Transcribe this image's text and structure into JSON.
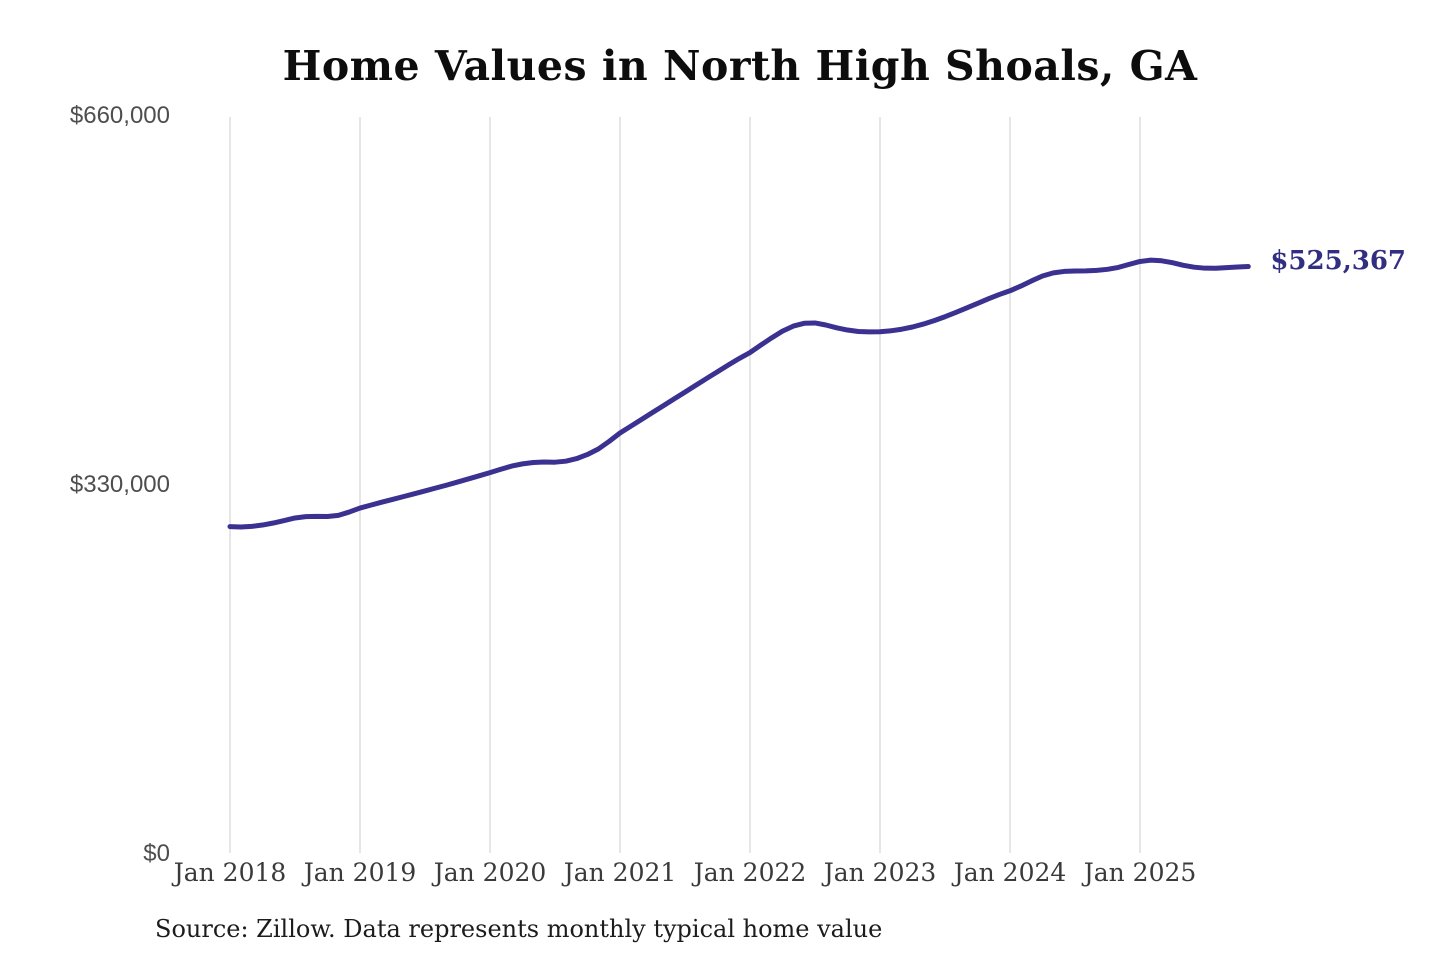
{
  "chart": {
    "title": "Home Values in North High Shoals, GA"
  },
  "footer": {
    "source": "Source: Zillow. Data represents monthly typical home value"
  },
  "chart_data": {
    "type": "line",
    "title": "Home Values in North High Shoals, GA",
    "xlabel": "",
    "ylabel": "",
    "x_start": "Jan 2018",
    "x_end": "Nov 2025",
    "x_interval": "month",
    "ylim": [
      0,
      660000
    ],
    "grid": "vertical-only",
    "legend": "none",
    "line_color": "#3b3191",
    "end_label": "$525,367",
    "end_value": 525367,
    "y_ticks": [
      {
        "label": "$660,000",
        "value": 660000
      },
      {
        "label": "$330,000",
        "value": 330000
      },
      {
        "label": "$0",
        "value": 0
      }
    ],
    "x_ticks": [
      {
        "label": "Jan 2018",
        "month_index": 0
      },
      {
        "label": "Jan 2019",
        "month_index": 12
      },
      {
        "label": "Jan 2020",
        "month_index": 24
      },
      {
        "label": "Jan 2021",
        "month_index": 36
      },
      {
        "label": "Jan 2022",
        "month_index": 48
      },
      {
        "label": "Jan 2023",
        "month_index": 60
      },
      {
        "label": "Jan 2024",
        "month_index": 72
      },
      {
        "label": "Jan 2025",
        "month_index": 84
      }
    ],
    "values": [
      292800,
      292400,
      293000,
      294200,
      296000,
      298200,
      300500,
      301700,
      301900,
      301800,
      302800,
      305800,
      309400,
      312000,
      314600,
      317100,
      319600,
      322100,
      324700,
      327300,
      329900,
      332600,
      335400,
      338200,
      341100,
      344100,
      346900,
      348900,
      350100,
      350600,
      350400,
      351300,
      353600,
      357300,
      362200,
      369000,
      376500,
      382600,
      388700,
      394800,
      400900,
      407000,
      413100,
      419200,
      425300,
      431300,
      437300,
      443100,
      448400,
      455100,
      461600,
      467600,
      472100,
      474600,
      474900,
      473100,
      470600,
      468600,
      467300,
      466900,
      467100,
      467900,
      469300,
      471300,
      473900,
      477000,
      480500,
      484300,
      488300,
      492400,
      496500,
      500300,
      503700,
      507900,
      512600,
      516900,
      519700,
      521000,
      521400,
      521500,
      521900,
      522900,
      524600,
      527300,
      529900,
      531100,
      530500,
      528800,
      526500,
      524800,
      523900,
      523800,
      524400,
      525000,
      525367
    ]
  }
}
